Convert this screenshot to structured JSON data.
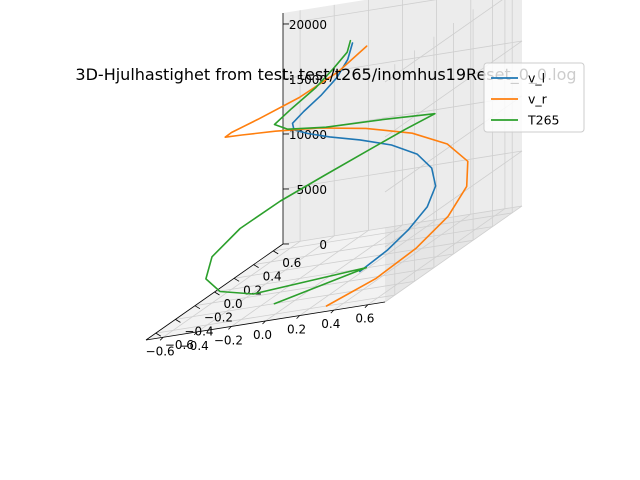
{
  "chart_data": {
    "type": "line",
    "title": "3D-Hjulhastighet from test: test/t265/inomhus19Reset_0_0.log",
    "xlabel": "",
    "ylabel": "",
    "zlabel": "",
    "xlim": [
      -0.7,
      0.7
    ],
    "ylim": [
      -0.7,
      0.7
    ],
    "zlim": [
      0,
      21000
    ],
    "x_ticks": [
      "−0.6",
      "−0.4",
      "−0.2",
      "0.0",
      "0.2",
      "0.4",
      "0.6"
    ],
    "y_ticks": [
      "−0.6",
      "−0.4",
      "−0.2",
      "0.0",
      "0.2",
      "0.4",
      "0.6"
    ],
    "z_ticks": [
      "0",
      "5000",
      "10000",
      "15000",
      "20000"
    ],
    "grid": true,
    "legend_position": "top-right",
    "series": [
      {
        "name": "v_l",
        "color": "#1f77b4",
        "points": [
          [
            0.18,
            -0.05,
            0
          ],
          [
            0.3,
            0.02,
            1200
          ],
          [
            0.38,
            0.1,
            2400
          ],
          [
            0.42,
            0.22,
            3600
          ],
          [
            0.4,
            0.34,
            4800
          ],
          [
            0.32,
            0.44,
            6000
          ],
          [
            0.2,
            0.5,
            7200
          ],
          [
            0.05,
            0.5,
            8400
          ],
          [
            -0.1,
            0.44,
            9600
          ],
          [
            -0.22,
            0.34,
            10800
          ],
          [
            -0.28,
            0.22,
            12000
          ],
          [
            -0.28,
            0.08,
            13200
          ],
          [
            -0.22,
            -0.04,
            14400
          ],
          [
            -0.12,
            -0.1,
            15600
          ],
          [
            -0.02,
            -0.1,
            16800
          ],
          [
            0.05,
            -0.06,
            18000
          ],
          [
            0.08,
            0.0,
            19200
          ],
          [
            0.08,
            0.05,
            20400
          ]
        ]
      },
      {
        "name": "v_r",
        "color": "#ff7f0e",
        "points": [
          [
            0.3,
            -0.6,
            0
          ],
          [
            0.52,
            -0.48,
            1200
          ],
          [
            0.64,
            -0.28,
            2400
          ],
          [
            0.68,
            -0.02,
            3600
          ],
          [
            0.64,
            0.24,
            4800
          ],
          [
            0.52,
            0.46,
            6000
          ],
          [
            0.32,
            0.6,
            7200
          ],
          [
            0.08,
            0.66,
            8400
          ],
          [
            -0.18,
            0.64,
            9600
          ],
          [
            -0.4,
            0.54,
            10800
          ],
          [
            -0.55,
            0.36,
            12000
          ],
          [
            -0.62,
            0.14,
            13200
          ],
          [
            -0.58,
            -0.1,
            14400
          ],
          [
            -0.44,
            -0.28,
            15600
          ],
          [
            -0.24,
            -0.36,
            16800
          ],
          [
            -0.02,
            -0.32,
            18000
          ],
          [
            0.14,
            -0.2,
            19200
          ],
          [
            0.22,
            -0.05,
            20400
          ]
        ]
      },
      {
        "name": "T265",
        "color": "#2ca02c",
        "points": [
          [
            -0.12,
            -0.4,
            0
          ],
          [
            0.2,
            -0.02,
            120
          ],
          [
            -0.3,
            -0.3,
            700
          ],
          [
            -0.45,
            -0.38,
            1800
          ],
          [
            -0.55,
            -0.35,
            3000
          ],
          [
            -0.6,
            -0.2,
            4200
          ],
          [
            -0.55,
            0.0,
            5400
          ],
          [
            -0.4,
            0.15,
            6600
          ],
          [
            -0.2,
            0.25,
            7800
          ],
          [
            0.0,
            0.33,
            9000
          ],
          [
            0.2,
            0.38,
            10200
          ],
          [
            0.35,
            0.42,
            11000
          ],
          [
            0.1,
            0.32,
            11700
          ],
          [
            -0.15,
            0.18,
            12500
          ],
          [
            -0.3,
            0.05,
            13500
          ],
          [
            -0.32,
            -0.05,
            14600
          ],
          [
            -0.22,
            -0.05,
            15800
          ],
          [
            -0.12,
            0.02,
            17000
          ],
          [
            -0.05,
            0.08,
            18200
          ],
          [
            0.02,
            0.1,
            19400
          ],
          [
            0.05,
            0.08,
            20500
          ]
        ]
      }
    ]
  }
}
